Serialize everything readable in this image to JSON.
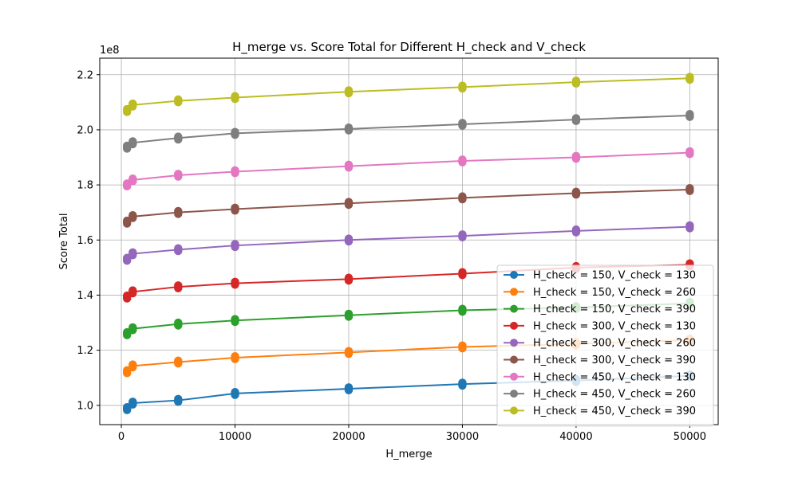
{
  "chart_data": {
    "type": "line",
    "title": "H_merge vs. Score Total for Different H_check and V_check",
    "xlabel": "H_merge",
    "ylabel": "Score Total",
    "y_offset_label": "1e8",
    "xlim": [
      -1900,
      52500
    ],
    "ylim": [
      0.93,
      2.26
    ],
    "x_ticks": [
      0,
      10000,
      20000,
      30000,
      40000,
      50000
    ],
    "x_tick_labels": [
      "0",
      "10000",
      "20000",
      "30000",
      "40000",
      "50000"
    ],
    "y_ticks": [
      1.0,
      1.2,
      1.4,
      1.6,
      1.8,
      2.0,
      2.2
    ],
    "y_tick_labels": [
      "1.0",
      "1.2",
      "1.4",
      "1.6",
      "1.8",
      "2.0",
      "2.2"
    ],
    "grid": true,
    "legend_position": "lower-right",
    "x": [
      500,
      1000,
      5000,
      10000,
      20000,
      30000,
      40000,
      50000
    ],
    "series": [
      {
        "name": "H_check = 150, V_check = 130",
        "color": "#1f77b4",
        "base": [
          0.988,
          1.008,
          1.018,
          1.043,
          1.06,
          1.077,
          1.09,
          1.107
        ],
        "spread": 0.01
      },
      {
        "name": "H_check = 150, V_check = 260",
        "color": "#ff7f0e",
        "base": [
          1.122,
          1.143,
          1.157,
          1.173,
          1.192,
          1.212,
          1.223,
          1.237
        ],
        "spread": 0.01
      },
      {
        "name": "H_check = 150, V_check = 390",
        "color": "#2ca02c",
        "base": [
          1.26,
          1.278,
          1.295,
          1.308,
          1.327,
          1.345,
          1.355,
          1.37
        ],
        "spread": 0.01
      },
      {
        "name": "H_check = 300, V_check = 130",
        "color": "#d62728",
        "base": [
          1.393,
          1.412,
          1.43,
          1.443,
          1.458,
          1.478,
          1.5,
          1.51
        ],
        "spread": 0.01
      },
      {
        "name": "H_check = 300, V_check = 260",
        "color": "#9467bd",
        "base": [
          1.53,
          1.55,
          1.565,
          1.58,
          1.6,
          1.615,
          1.633,
          1.648
        ],
        "spread": 0.01
      },
      {
        "name": "H_check = 300, V_check = 390",
        "color": "#8c564b",
        "base": [
          1.665,
          1.685,
          1.7,
          1.712,
          1.733,
          1.753,
          1.77,
          1.783
        ],
        "spread": 0.01
      },
      {
        "name": "H_check = 450, V_check = 130",
        "color": "#e377c2",
        "base": [
          1.8,
          1.818,
          1.835,
          1.848,
          1.868,
          1.887,
          1.9,
          1.917
        ],
        "spread": 0.01
      },
      {
        "name": "H_check = 450, V_check = 260",
        "color": "#7f7f7f",
        "base": [
          1.937,
          1.953,
          1.97,
          1.987,
          2.003,
          2.02,
          2.037,
          2.052
        ],
        "spread": 0.01
      },
      {
        "name": "H_check = 450, V_check = 390",
        "color": "#bcbd22",
        "base": [
          2.07,
          2.09,
          2.105,
          2.117,
          2.138,
          2.155,
          2.173,
          2.187
        ],
        "spread": 0.01
      }
    ]
  }
}
